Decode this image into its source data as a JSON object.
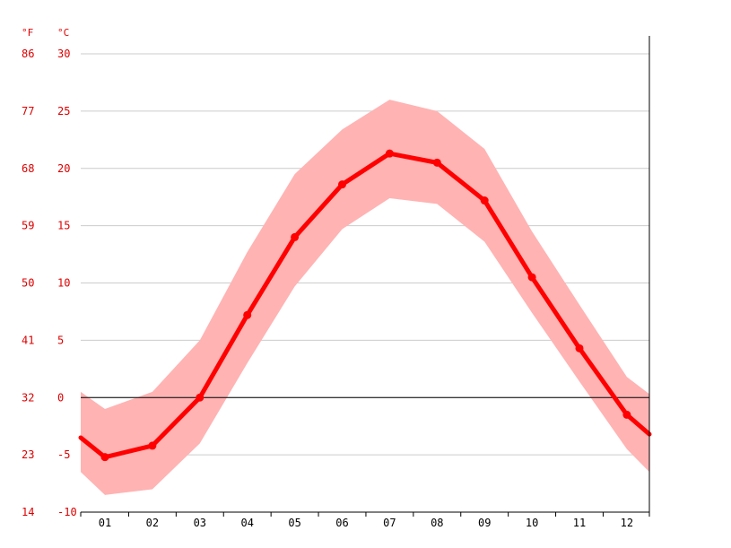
{
  "chart_data": {
    "type": "line",
    "categories": [
      "01",
      "02",
      "03",
      "04",
      "05",
      "06",
      "07",
      "08",
      "09",
      "10",
      "11",
      "12"
    ],
    "unit_left": "°F",
    "unit_right": "°C",
    "y_ticks_c": [
      30,
      25,
      20,
      15,
      10,
      5,
      0,
      -5,
      -10
    ],
    "y_ticks_f": [
      86,
      77,
      68,
      59,
      50,
      41,
      32,
      23,
      14
    ],
    "ylim": [
      -10,
      30
    ],
    "series": [
      {
        "values": [
          -5.2,
          -4.2,
          0.0,
          7.2,
          14.0,
          18.6,
          21.3,
          20.5,
          17.2,
          10.5,
          4.3,
          -1.5
        ]
      }
    ],
    "band": {
      "upper": [
        -1.0,
        0.5,
        5.0,
        12.7,
        19.5,
        23.4,
        26.0,
        25.0,
        21.7,
        14.5,
        8.1,
        1.8
      ],
      "lower": [
        -8.5,
        -8.0,
        -4.0,
        3.0,
        9.7,
        14.7,
        17.4,
        16.9,
        13.6,
        7.4,
        1.4,
        -4.5
      ],
      "edge_left": {
        "upper": 0.5,
        "lower": -6.5,
        "mean": -3.5
      },
      "edge_right": {
        "upper": 0.3,
        "lower": -6.5,
        "mean": -3.2
      }
    },
    "grid": true,
    "colors": {
      "line": "#ff0000",
      "band": "#ffb3b3",
      "grid": "#cccccc",
      "zero_line": "#000000",
      "axis_text": "#dd0000",
      "tick_text": "#000000"
    }
  }
}
